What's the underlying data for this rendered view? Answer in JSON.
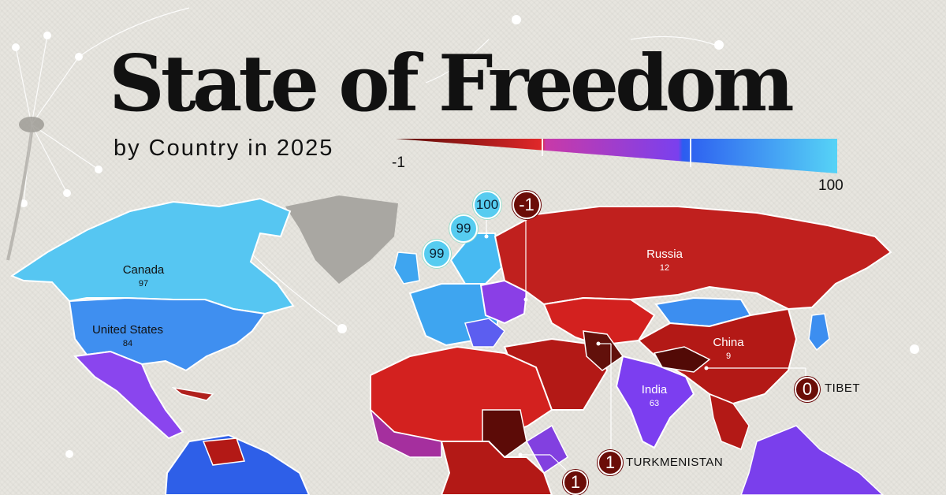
{
  "title": "State of Freedom",
  "subtitle": "by Country in 2025",
  "scale": {
    "min_label": "-1",
    "max_label": "100",
    "colors": [
      "#5a0b06",
      "#e0282a",
      "#b03ec8",
      "#2c5cf0",
      "#56d3f6"
    ]
  },
  "map_data": {
    "countries": [
      {
        "name": "Canada",
        "score": "97",
        "color": "#56c6f2"
      },
      {
        "name": "United States",
        "score": "84",
        "color": "#3f8ff0"
      },
      {
        "name": "Russia",
        "score": "12",
        "color": "#c0201e"
      },
      {
        "name": "China",
        "score": "9",
        "color": "#b31916"
      },
      {
        "name": "India",
        "score": "63",
        "color": "#7c3ef0"
      }
    ],
    "bubbles": [
      {
        "value": "100",
        "tone": "blue"
      },
      {
        "value": "99",
        "tone": "blue"
      },
      {
        "value": "99",
        "tone": "blue"
      },
      {
        "value": "-1",
        "tone": "red"
      }
    ],
    "callouts": [
      {
        "value": "0",
        "label": "TIBET"
      },
      {
        "value": "1",
        "label": "TURKMENISTAN"
      },
      {
        "value": "1",
        "label": ""
      }
    ]
  }
}
